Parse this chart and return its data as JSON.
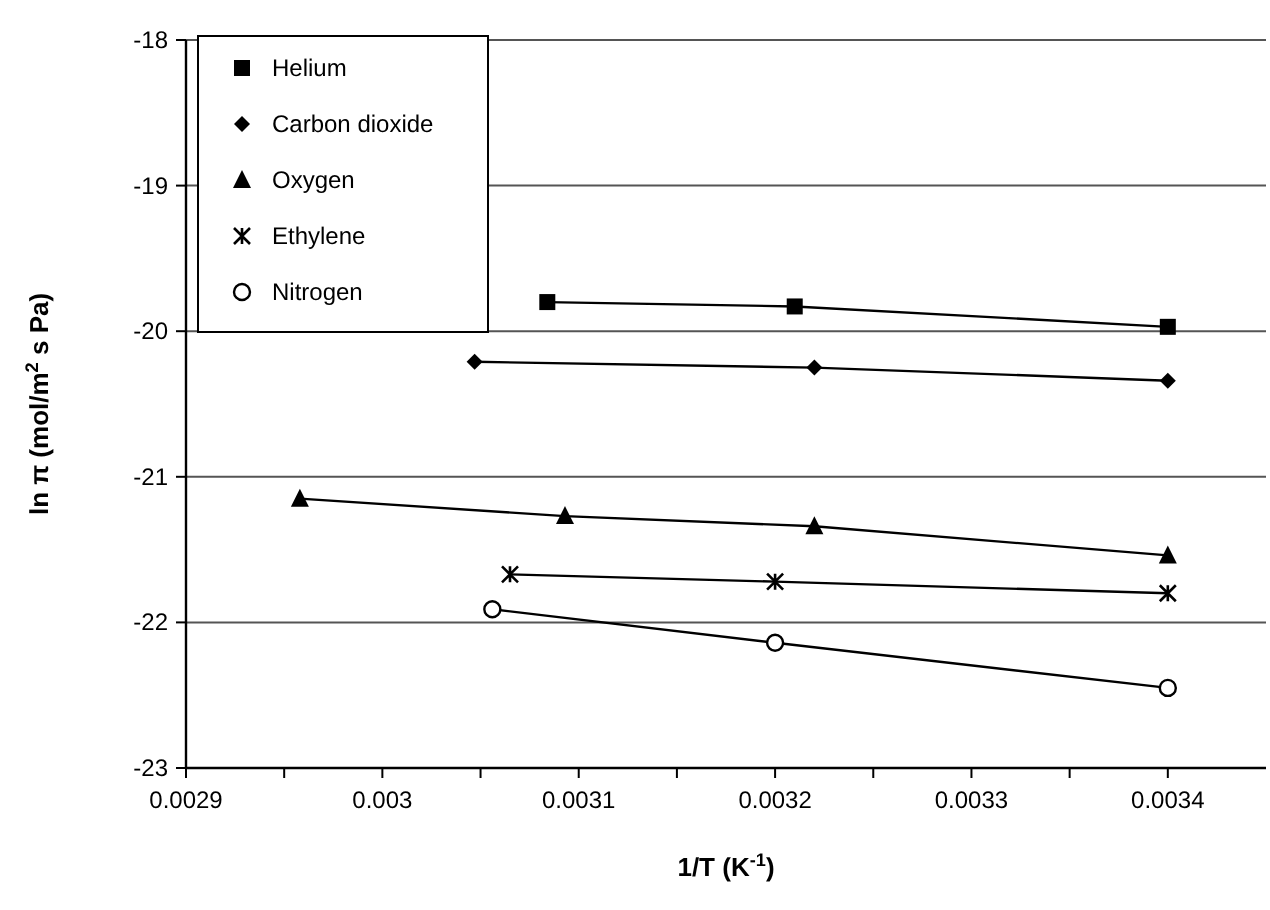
{
  "chart_data": {
    "type": "line",
    "xlabel": "1/T (K$^{-1}$)",
    "ylabel": "ln π (mol/m$^{2}$ s Pa)",
    "xlim": [
      0.0029,
      0.00345
    ],
    "ylim": [
      -23,
      -18
    ],
    "xticks": [
      0.0029,
      {
        "value": 0.00295,
        "label": null
      },
      0.003,
      {
        "value": 0.00305,
        "label": null
      },
      0.0031,
      {
        "value": 0.00315,
        "label": null
      },
      0.0032,
      {
        "value": 0.00325,
        "label": null
      },
      0.0033,
      {
        "value": 0.00335,
        "label": null
      },
      0.0034
    ],
    "yticks": [
      -23,
      -22,
      -21,
      -20,
      -19,
      -18
    ],
    "grid": "y",
    "legend": "top left",
    "line_style": "solid",
    "series": [
      {
        "name": "Helium",
        "color": "#000000",
        "marker": "square",
        "x": [
          0.003084,
          0.00321,
          0.0034
        ],
        "values": [
          -19.8,
          -19.83,
          -19.97
        ]
      },
      {
        "name": "Carbon dioxide",
        "color": "#000000",
        "marker": "diamond",
        "x": [
          0.003047,
          0.00322,
          0.0034
        ],
        "values": [
          -20.21,
          -20.25,
          -20.34
        ]
      },
      {
        "name": "Oxygen",
        "color": "#000000",
        "marker": "triangle",
        "x": [
          0.002958,
          0.003093,
          0.00322,
          0.0034
        ],
        "values": [
          -21.15,
          -21.27,
          -21.34,
          -21.54
        ]
      },
      {
        "name": "Ethylene",
        "color": "#000000",
        "marker": "cross",
        "x": [
          0.003065,
          0.0032,
          0.0034
        ],
        "values": [
          -21.67,
          -21.72,
          -21.8
        ]
      },
      {
        "name": "Nitrogen",
        "color": "#000000",
        "marker": "circle",
        "x": [
          0.003056,
          0.0032,
          0.0034
        ],
        "values": [
          -21.91,
          -22.14,
          -22.45
        ]
      }
    ]
  }
}
